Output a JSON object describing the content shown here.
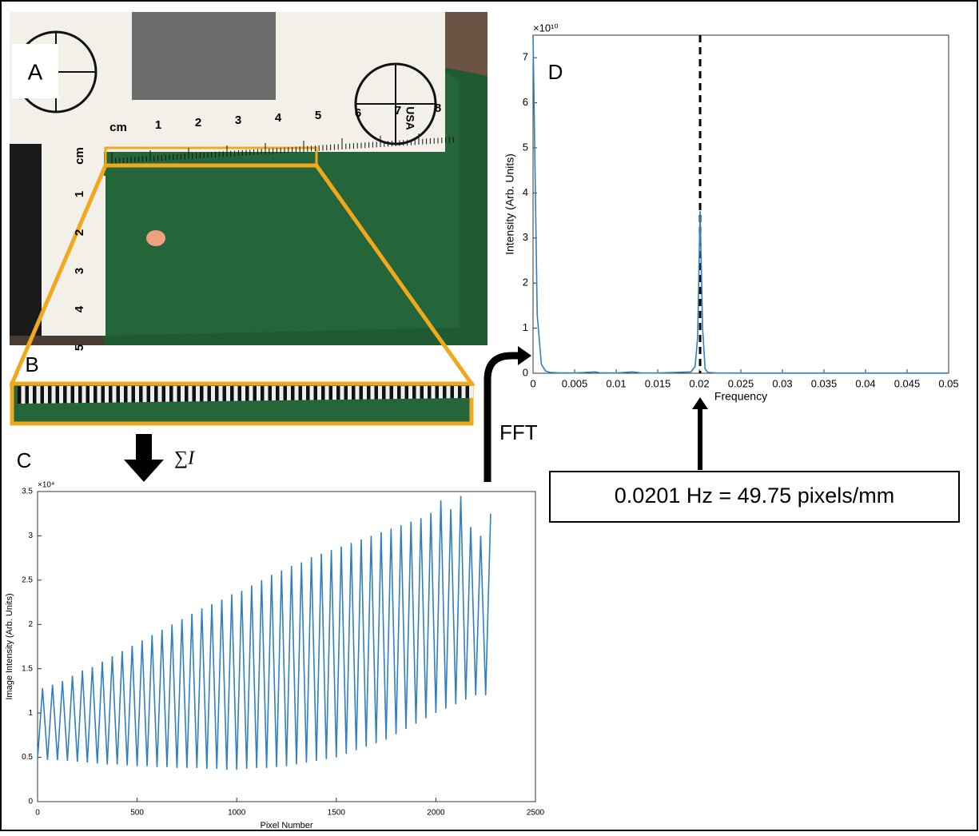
{
  "panel_labels": [
    "A",
    "B"
  ],
  "ruler_top": [
    "cm",
    "1",
    "2",
    "3",
    "4",
    "5",
    "6",
    "7",
    "8"
  ],
  "ruler_left": [
    "cm",
    "1",
    "2",
    "3",
    "4",
    "5"
  ],
  "ruler_badge": "USA",
  "sum_label": "∑I",
  "arrow_label": "FFT",
  "chart_data": [
    {
      "type": "line",
      "panel": "C",
      "xlabel": "Pixel Number",
      "ylabel": "Image Intensity (Arb. Units)",
      "y_multiplier": "×10⁴",
      "color": "#2f7fc1",
      "xlim": [
        0,
        2500
      ],
      "xticks": [
        0,
        500,
        1000,
        1500,
        2000,
        2500
      ],
      "ylim": [
        0,
        35000
      ],
      "yticks": [
        0,
        {
          "value": 5000,
          "label": "0.5"
        },
        {
          "value": 10000,
          "label": "1"
        },
        {
          "value": 15000,
          "label": "1.5"
        },
        {
          "value": 20000,
          "label": "2"
        },
        {
          "value": 25000,
          "label": "2.5"
        },
        {
          "value": 30000,
          "label": "3"
        },
        {
          "value": 35000,
          "label": "3.5"
        }
      ],
      "x": [
        0,
        25,
        50,
        75,
        100,
        125,
        150,
        175,
        200,
        225,
        250,
        275,
        300,
        325,
        350,
        375,
        400,
        425,
        450,
        475,
        500,
        525,
        550,
        575,
        600,
        625,
        650,
        675,
        700,
        725,
        750,
        775,
        800,
        825,
        850,
        875,
        900,
        925,
        950,
        975,
        1000,
        1025,
        1050,
        1075,
        1100,
        1125,
        1150,
        1175,
        1200,
        1225,
        1250,
        1275,
        1300,
        1325,
        1350,
        1375,
        1400,
        1425,
        1450,
        1475,
        1500,
        1525,
        1550,
        1575,
        1600,
        1625,
        1650,
        1675,
        1700,
        1725,
        1750,
        1775,
        1800,
        1825,
        1850,
        1875,
        1900,
        1925,
        1950,
        1975,
        2000,
        2025,
        2050,
        2075,
        2100,
        2125,
        2150,
        2175,
        2200,
        2225,
        2250,
        2275
      ],
      "values": [
        4800,
        12800,
        4700,
        13200,
        4700,
        13600,
        4600,
        14200,
        4500,
        14800,
        4400,
        15200,
        4300,
        15800,
        4200,
        16400,
        4200,
        17000,
        4100,
        17600,
        4000,
        18200,
        4000,
        18800,
        3900,
        19400,
        3900,
        20000,
        3800,
        20600,
        3800,
        21200,
        3800,
        21800,
        3700,
        22300,
        3700,
        22800,
        3600,
        23400,
        3600,
        23800,
        3700,
        24400,
        3800,
        25000,
        3800,
        25600,
        3900,
        26100,
        4000,
        26600,
        4200,
        27000,
        4400,
        27600,
        4600,
        28000,
        4800,
        28400,
        5000,
        28800,
        5400,
        29200,
        5800,
        29600,
        6200,
        30000,
        6600,
        30400,
        7000,
        30800,
        7600,
        31200,
        8200,
        31600,
        8800,
        32000,
        9400,
        32600,
        10000,
        34000,
        10500,
        33000,
        11000,
        34500,
        11500,
        31000,
        12000,
        30000,
        12000,
        32500
      ]
    },
    {
      "type": "line",
      "panel": "D",
      "xlabel": "Frequency",
      "ylabel": "Intensity (Arb. Units)",
      "y_multiplier": "×10¹⁰",
      "color": "#2f7fc1",
      "xlim": [
        0,
        0.05
      ],
      "xticks": [
        0,
        0.005,
        0.01,
        0.015,
        0.02,
        0.025,
        0.03,
        0.035,
        0.04,
        0.045,
        0.05
      ],
      "ylim": [
        0,
        75000000000
      ],
      "yticks": [
        0,
        {
          "value": 10000000000,
          "label": "1"
        },
        {
          "value": 20000000000,
          "label": "2"
        },
        {
          "value": 30000000000,
          "label": "3"
        },
        {
          "value": 40000000000,
          "label": "4"
        },
        {
          "value": 50000000000,
          "label": "5"
        },
        {
          "value": 60000000000,
          "label": "6"
        },
        {
          "value": 70000000000,
          "label": "7"
        }
      ],
      "x": [
        0,
        0.0005,
        0.001,
        0.0015,
        0.002,
        0.003,
        0.005,
        0.0075,
        0.008,
        0.01,
        0.012,
        0.013,
        0.015,
        0.019,
        0.0195,
        0.0198,
        0.0201,
        0.0204,
        0.0207,
        0.021,
        0.022,
        0.025,
        0.03,
        0.04,
        0.05
      ],
      "values": [
        75000000000,
        13000000000,
        2000000000,
        500000000,
        200000000,
        100000000,
        50000000,
        300000000,
        100000000,
        50000000,
        300000000,
        50000000,
        50000000,
        300000000,
        1500000000,
        8000000000,
        36000000000,
        10000000000,
        1000000000,
        200000000,
        50000000,
        30000000,
        30000000,
        30000000,
        30000000
      ],
      "marker_x": 0.0201,
      "annotation": "0.0201 Hz = 49.75 pixels/mm"
    }
  ]
}
